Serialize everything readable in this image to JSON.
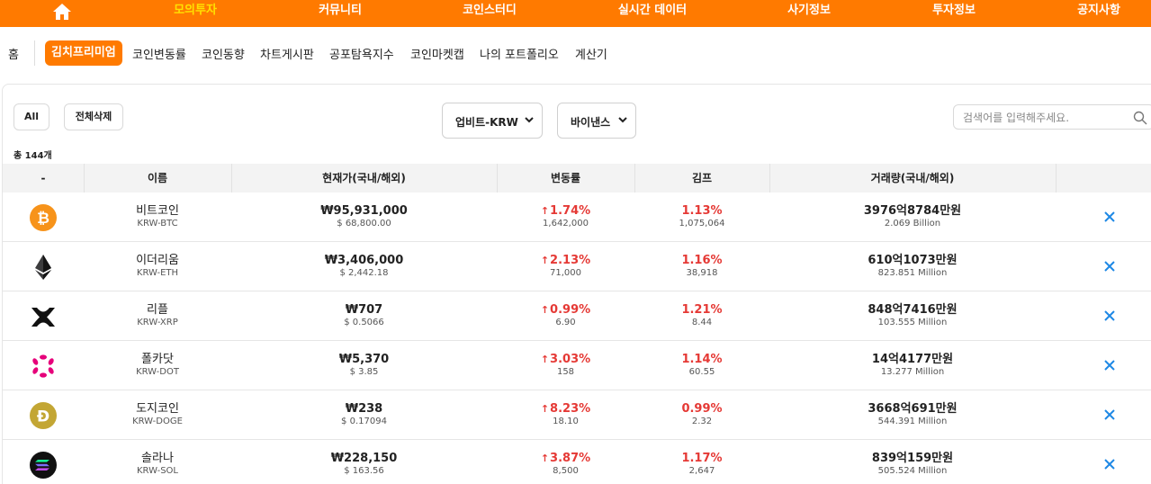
{
  "topnav": {
    "items": [
      "모의투자",
      "커뮤니티",
      "코인스터디",
      "실시간 데이터",
      "사기정보",
      "투자정보",
      "공지사항"
    ],
    "active": "모의투자"
  },
  "subnav": {
    "home": "홈",
    "active": "김치프리미엄",
    "items": [
      "코인변동률",
      "코인동향",
      "차트게시판",
      "공포탐욕지수",
      "코인마켓캡",
      "나의 포트폴리오",
      "계산기"
    ]
  },
  "toolbar": {
    "all_label": "All",
    "delete_all_label": "전체삭제",
    "exchange_domestic": "업비트-KRW",
    "exchange_foreign": "바이낸스",
    "search_placeholder": "검색어를 입력해주세요.",
    "total": "총 144개"
  },
  "table": {
    "headers": [
      "-",
      "이름",
      "현재가(국내/해외)",
      "변동률",
      "김프",
      "거래량(국내/해외)"
    ],
    "rows": [
      {
        "icon": "bitcoin-icon",
        "name": "비트코인",
        "ticker": "KRW-BTC",
        "price_krw": "₩95,931,000",
        "price_usd": "$ 68,800.00",
        "change_pct": "1.74%",
        "change_abs": "1,642,000",
        "kimp_pct": "1.13%",
        "kimp_abs": "1,075,064",
        "volume_krw": "3976억8784만원",
        "volume_usd": "2.069 Billion"
      },
      {
        "icon": "ethereum-icon",
        "name": "이더리움",
        "ticker": "KRW-ETH",
        "price_krw": "₩3,406,000",
        "price_usd": "$ 2,442.18",
        "change_pct": "2.13%",
        "change_abs": "71,000",
        "kimp_pct": "1.16%",
        "kimp_abs": "38,918",
        "volume_krw": "610억1073만원",
        "volume_usd": "823.851 Million"
      },
      {
        "icon": "xrp-icon",
        "name": "리플",
        "ticker": "KRW-XRP",
        "price_krw": "₩707",
        "price_usd": "$ 0.5066",
        "change_pct": "0.99%",
        "change_abs": "6.90",
        "kimp_pct": "1.21%",
        "kimp_abs": "8.44",
        "volume_krw": "848억7416만원",
        "volume_usd": "103.555 Million"
      },
      {
        "icon": "polkadot-icon",
        "name": "폴카닷",
        "ticker": "KRW-DOT",
        "price_krw": "₩5,370",
        "price_usd": "$ 3.85",
        "change_pct": "3.03%",
        "change_abs": "158",
        "kimp_pct": "1.14%",
        "kimp_abs": "60.55",
        "volume_krw": "14억4177만원",
        "volume_usd": "13.277 Million"
      },
      {
        "icon": "dogecoin-icon",
        "name": "도지코인",
        "ticker": "KRW-DOGE",
        "price_krw": "₩238",
        "price_usd": "$ 0.17094",
        "change_pct": "8.23%",
        "change_abs": "18.10",
        "kimp_pct": "0.99%",
        "kimp_abs": "2.32",
        "volume_krw": "3668억691만원",
        "volume_usd": "544.391 Million"
      },
      {
        "icon": "solana-icon",
        "name": "솔라나",
        "ticker": "KRW-SOL",
        "price_krw": "₩228,150",
        "price_usd": "$ 163.56",
        "change_pct": "3.87%",
        "change_abs": "8,500",
        "kimp_pct": "1.17%",
        "kimp_abs": "2,647",
        "volume_krw": "839억159만원",
        "volume_usd": "505.524 Million"
      }
    ]
  },
  "colors": {
    "brand": "#ff7a00",
    "active_nav": "#ffe100",
    "up": "#e53935",
    "delete": "#1e88e5"
  }
}
